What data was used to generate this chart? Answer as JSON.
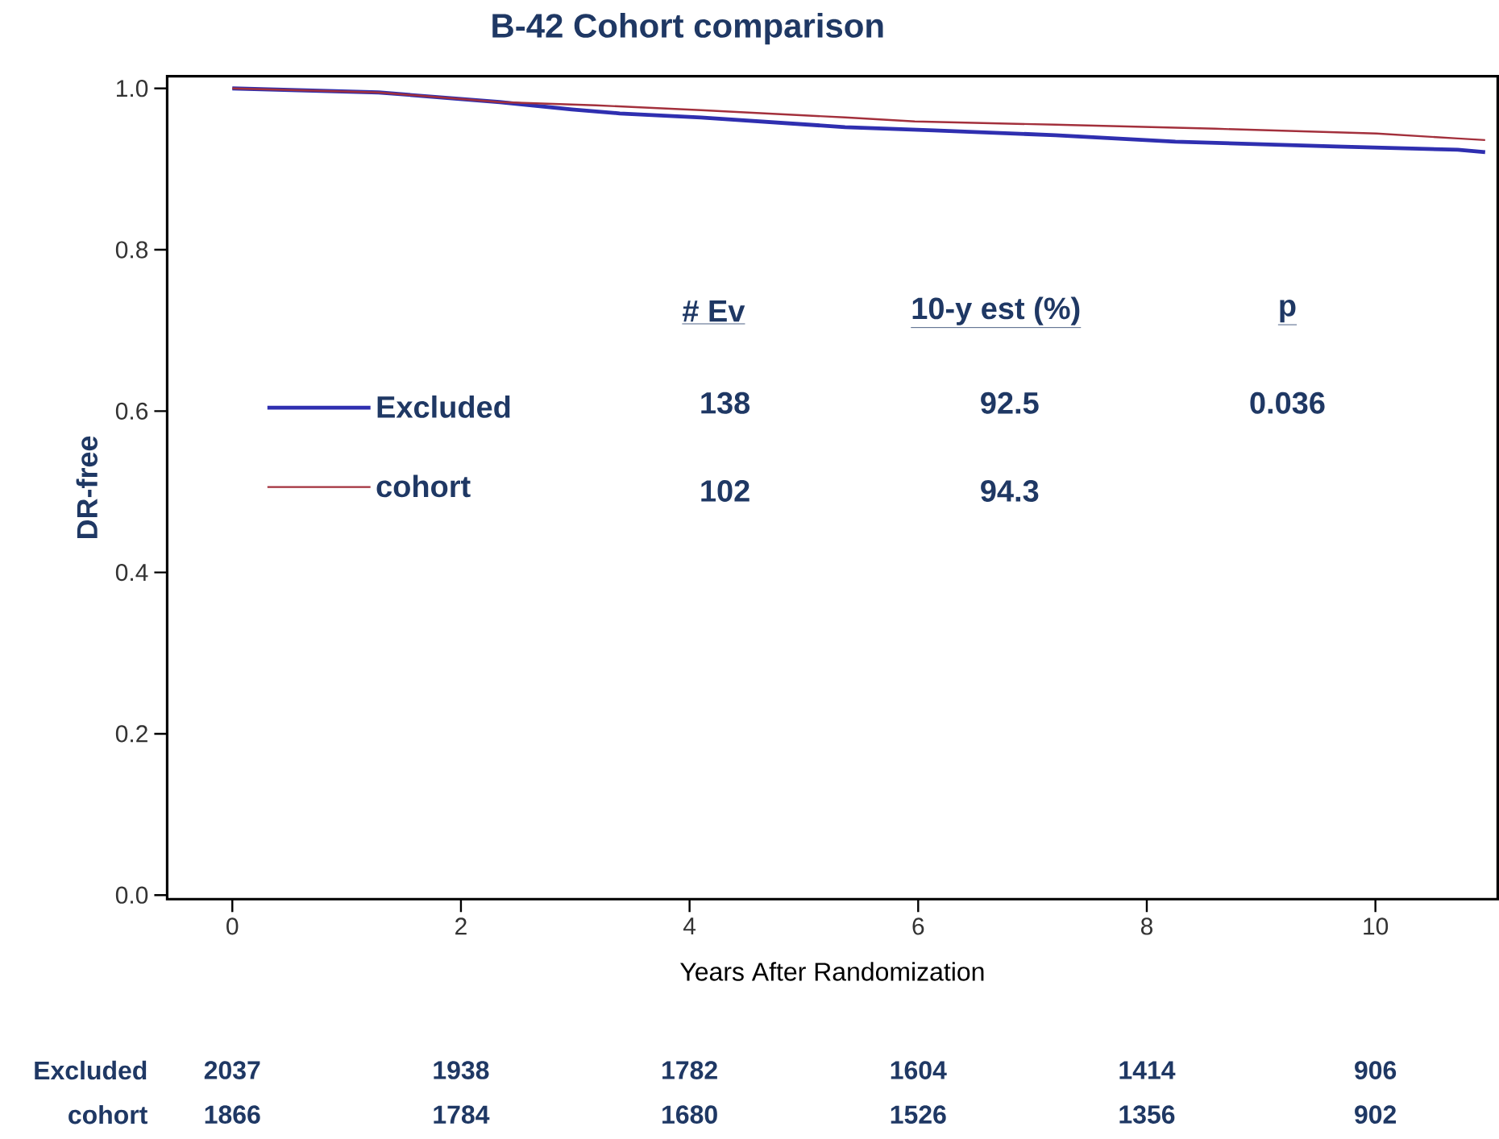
{
  "chart_data": {
    "type": "line",
    "title": "B-42 Cohort comparison",
    "xlabel": "Years After Randomization",
    "ylabel": "DR-free",
    "xlim": [
      -0.57,
      11.07
    ],
    "ylim": [
      -0.005,
      1.015
    ],
    "xticks": [
      0,
      2,
      4,
      6,
      8,
      10
    ],
    "yticks": [
      {
        "value": 0,
        "label": "0.0"
      },
      0.2,
      0.4,
      0.6,
      0.8,
      {
        "value": 1,
        "label": "1.0"
      }
    ],
    "legend": "left",
    "line_style": "solid",
    "series": [
      {
        "name": "Excluded",
        "color": "#2f2fb0",
        "x": [
          0,
          1.28,
          2.34,
          2.97,
          3.39,
          4.1,
          5.36,
          6.14,
          7.2,
          8.25,
          9.66,
          10.72,
          10.96
        ],
        "values": [
          1.0,
          0.995,
          0.983,
          0.974,
          0.969,
          0.964,
          0.952,
          0.948,
          0.942,
          0.934,
          0.928,
          0.924,
          0.921
        ]
      },
      {
        "name": "cohort",
        "color": "#a3303c",
        "x": [
          0,
          1.28,
          2.34,
          3.18,
          4.1,
          5.36,
          5.97,
          7.2,
          8.6,
          10.01,
          10.72,
          10.96
        ],
        "values": [
          1.0,
          0.995,
          0.983,
          0.979,
          0.973,
          0.964,
          0.959,
          0.955,
          0.95,
          0.944,
          0.938,
          0.936
        ]
      }
    ],
    "annotations": [
      "# Ev",
      "10-y est (%)",
      "p",
      "138",
      "92.5",
      "0.036",
      "102",
      "94.3",
      "Excluded",
      "2037",
      "1938",
      "1782",
      "1604",
      "1414",
      "906",
      "cohort",
      "1866",
      "1784",
      "1680",
      "1526",
      "1356",
      "902"
    ]
  }
}
